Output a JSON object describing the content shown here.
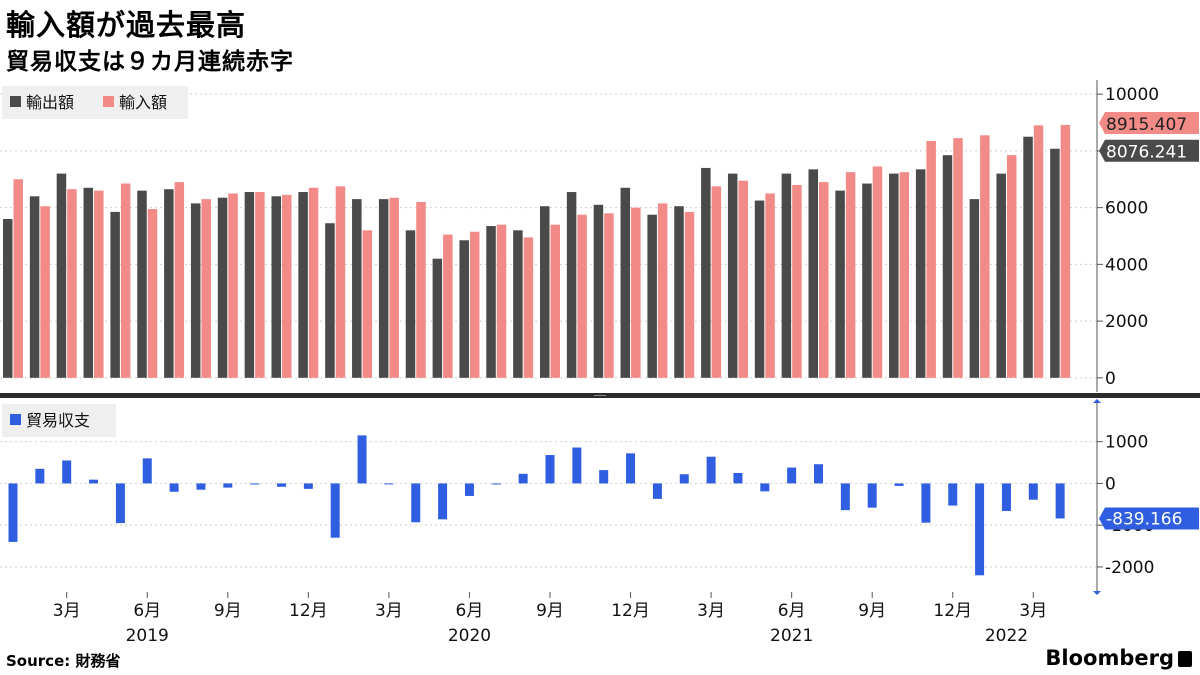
{
  "title": "輸入額が過去最高",
  "subtitle": "貿易収支は９カ月連続赤字",
  "source_label": "Source:",
  "source_value": "財務省",
  "brand": "Bloomberg",
  "colors": {
    "export": "#4a4a4a",
    "import": "#f28a87",
    "balance": "#2f5fe0",
    "grid": "#cfcfcf",
    "legend_bg": "#efefef"
  },
  "chart_data": [
    {
      "type": "bar",
      "legend": [
        "輸出額",
        "輸入額"
      ],
      "months": [
        "2019-01",
        "2019-02",
        "2019-03",
        "2019-04",
        "2019-05",
        "2019-06",
        "2019-07",
        "2019-08",
        "2019-09",
        "2019-10",
        "2019-11",
        "2019-12",
        "2020-01",
        "2020-02",
        "2020-03",
        "2020-04",
        "2020-05",
        "2020-06",
        "2020-07",
        "2020-08",
        "2020-09",
        "2020-10",
        "2020-11",
        "2020-12",
        "2021-01",
        "2021-02",
        "2021-03",
        "2021-04",
        "2021-05",
        "2021-06",
        "2021-07",
        "2021-08",
        "2021-09",
        "2021-10",
        "2021-11",
        "2021-12",
        "2022-01",
        "2022-02",
        "2022-03",
        "2022-04"
      ],
      "series": [
        {
          "name": "輸出額",
          "values": [
            5600,
            6400,
            7200,
            6700,
            5850,
            6600,
            6650,
            6150,
            6350,
            6550,
            6400,
            6550,
            5450,
            6300,
            6300,
            5200,
            4200,
            4850,
            5350,
            5200,
            6050,
            6550,
            6100,
            6700,
            5750,
            6050,
            7400,
            7200,
            6250,
            7200,
            7350,
            6600,
            6850,
            7200,
            7350,
            7850,
            6300,
            7200,
            8500,
            8076.241
          ]
        },
        {
          "name": "輸入額",
          "values": [
            7000,
            6050,
            6650,
            6600,
            6850,
            5950,
            6900,
            6300,
            6500,
            6550,
            6450,
            6700,
            6750,
            5200,
            6350,
            6200,
            5050,
            5150,
            5400,
            4950,
            5400,
            5750,
            5800,
            6000,
            6150,
            5850,
            6750,
            6950,
            6500,
            6800,
            6900,
            7250,
            7450,
            7250,
            8350,
            8450,
            8550,
            7850,
            8900,
            8915.407
          ]
        }
      ],
      "last_labels": {
        "export": "8076.241",
        "import": "8915.407"
      },
      "yticks": [
        "10000",
        "8000",
        "6000",
        "4000",
        "2000",
        "0"
      ],
      "ylim": [
        -500,
        10500
      ]
    },
    {
      "type": "bar",
      "legend": [
        "貿易収支"
      ],
      "series": [
        {
          "name": "貿易収支",
          "values": [
            -1400,
            350,
            550,
            90,
            -950,
            600,
            -200,
            -150,
            -100,
            0,
            -80,
            -130,
            -1300,
            1150,
            0,
            -930,
            -860,
            -300,
            -10,
            230,
            680,
            860,
            320,
            720,
            -370,
            220,
            640,
            250,
            -190,
            380,
            460,
            -640,
            -580,
            -60,
            -940,
            -530,
            -2200,
            -660,
            -390,
            -839.166
          ]
        }
      ],
      "last_label": "-839.166",
      "yticks": [
        "1000",
        "0",
        "-1000",
        "-2000"
      ],
      "ylim": [
        -2600,
        1950
      ]
    }
  ],
  "x_axis": {
    "month_ticks": [
      {
        "index": 2,
        "label": "3月"
      },
      {
        "index": 5,
        "label": "6月"
      },
      {
        "index": 8,
        "label": "9月"
      },
      {
        "index": 11,
        "label": "12月"
      },
      {
        "index": 14,
        "label": "3月"
      },
      {
        "index": 17,
        "label": "6月"
      },
      {
        "index": 20,
        "label": "9月"
      },
      {
        "index": 23,
        "label": "12月"
      },
      {
        "index": 26,
        "label": "3月"
      },
      {
        "index": 29,
        "label": "6月"
      },
      {
        "index": 32,
        "label": "9月"
      },
      {
        "index": 35,
        "label": "12月"
      },
      {
        "index": 38,
        "label": "3月"
      }
    ],
    "years": [
      {
        "index": 5,
        "label": "2019"
      },
      {
        "index": 17,
        "label": "2020"
      },
      {
        "index": 29,
        "label": "2021"
      },
      {
        "index": 37,
        "label": "2022"
      }
    ]
  }
}
